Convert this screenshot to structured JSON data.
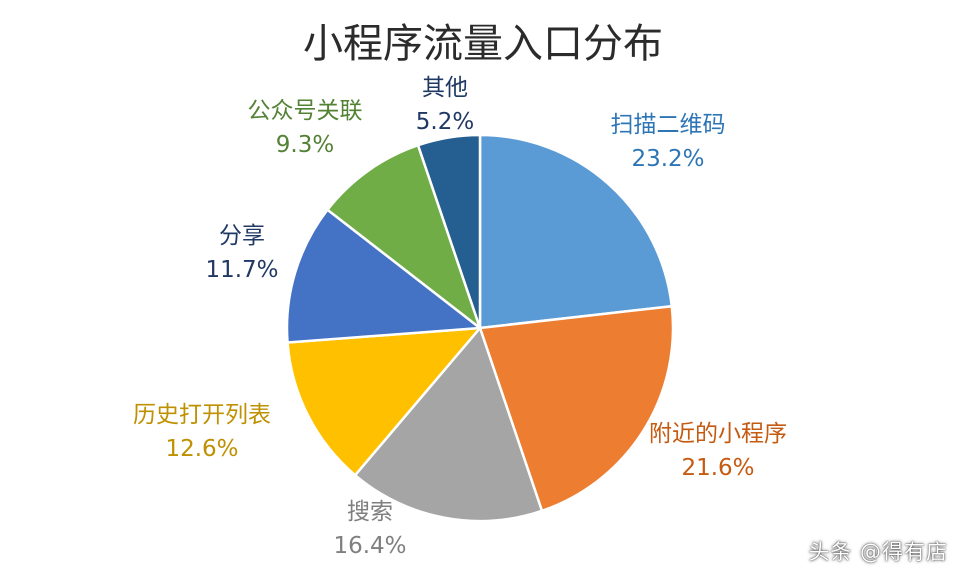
{
  "watermark": "头条 @得有店",
  "chart_data": {
    "type": "pie",
    "title": "小程序流量入口分布",
    "slices": [
      {
        "label": "扫描二维码",
        "value": 23.2,
        "value_text": "23.2%",
        "color": "#5b9bd5",
        "label_color": "#2e75b6"
      },
      {
        "label": "附近的小程序",
        "value": 21.6,
        "value_text": "21.6%",
        "color": "#ed7d31",
        "label_color": "#c55a11"
      },
      {
        "label": "搜索",
        "value": 16.4,
        "value_text": "16.4%",
        "color": "#a5a5a5",
        "label_color": "#7f7f7f"
      },
      {
        "label": "历史打开列表",
        "value": 12.6,
        "value_text": "12.6%",
        "color": "#ffc000",
        "label_color": "#bf9000"
      },
      {
        "label": "分享",
        "value": 11.7,
        "value_text": "11.7%",
        "color": "#4472c4",
        "label_color": "#203864"
      },
      {
        "label": "公众号关联",
        "value": 9.3,
        "value_text": "9.3%",
        "color": "#70ad47",
        "label_color": "#548235"
      },
      {
        "label": "其他",
        "value": 5.2,
        "value_text": "5.2%",
        "color": "#255e91",
        "label_color": "#1f3864"
      }
    ],
    "start_angle": "12 o'clock",
    "direction": "clockwise",
    "legend": "none"
  }
}
